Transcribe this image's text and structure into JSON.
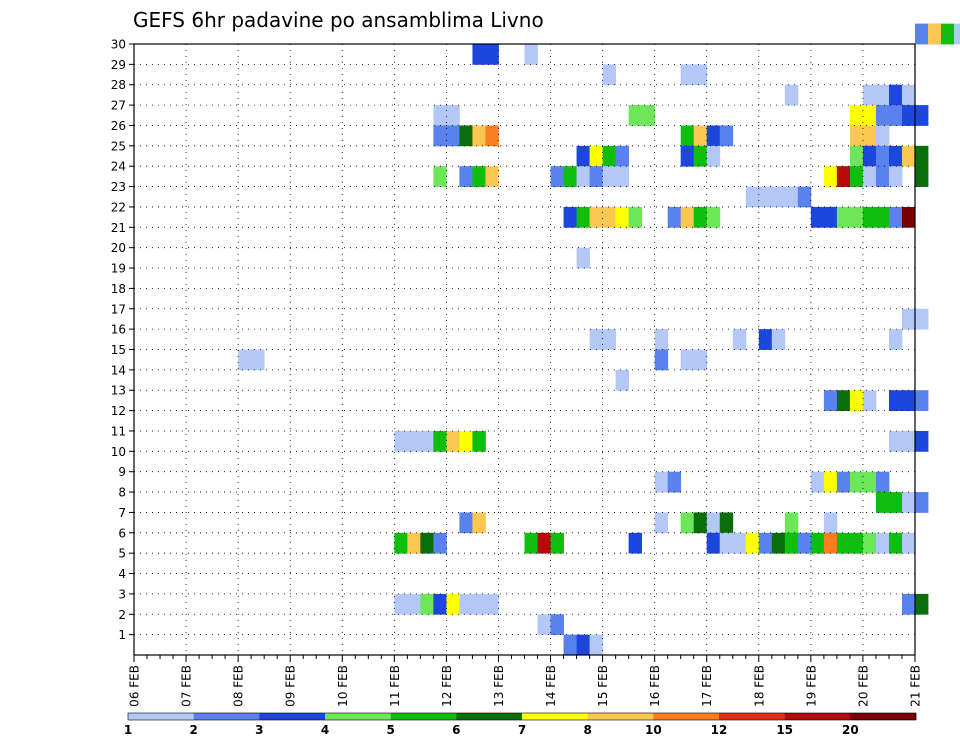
{
  "chart_data": {
    "type": "heatmap",
    "title": "GEFS 6hr padavine po ansamblima Livno",
    "x_tick_labels": [
      "06 FEB",
      "07 FEB",
      "08 FEB",
      "09 FEB",
      "10 FEB",
      "11 FEB",
      "12 FEB",
      "13 FEB",
      "14 FEB",
      "15 FEB",
      "16 FEB",
      "17 FEB",
      "18 FEB",
      "19 FEB",
      "20 FEB",
      "21 FEB"
    ],
    "y_tick_labels": [
      "1",
      "2",
      "3",
      "4",
      "5",
      "6",
      "7",
      "8",
      "9",
      "10",
      "11",
      "12",
      "13",
      "14",
      "15",
      "16",
      "17",
      "18",
      "19",
      "20",
      "21",
      "22",
      "23",
      "24",
      "25",
      "26",
      "27",
      "28",
      "29",
      "30"
    ],
    "colorbar_labels": [
      "1",
      "2",
      "3",
      "4",
      "5",
      "6",
      "7",
      "8",
      "10",
      "12",
      "15",
      "20"
    ],
    "colors": [
      "#b4c8f8",
      "#5a82ef",
      "#1c46dc",
      "#6ee65a",
      "#0fbe0f",
      "#0a6e0a",
      "#ffff00",
      "#fac850",
      "#fa7d1e",
      "#e62d14",
      "#b40a0a",
      "#780000"
    ],
    "grid": true,
    "cells": [
      {
        "m": 30,
        "c": [
          [
            60,
            2,
            2
          ],
          [
            61,
            1,
            8
          ],
          [
            62,
            1,
            5
          ],
          [
            63,
            1,
            1
          ]
        ]
      },
      {
        "m": 29,
        "c": [
          [
            26,
            2,
            3
          ],
          [
            30,
            1,
            1
          ]
        ]
      },
      {
        "m": 28,
        "c": [
          [
            36,
            1,
            1
          ],
          [
            42,
            2,
            1
          ]
        ]
      },
      {
        "m": 27,
        "c": [
          [
            50,
            1,
            1
          ],
          [
            56,
            2,
            1
          ],
          [
            58,
            1,
            3
          ],
          [
            59,
            1,
            1
          ]
        ]
      },
      {
        "m": 26,
        "c": [
          [
            23,
            2,
            1
          ],
          [
            38,
            2,
            4
          ],
          [
            55,
            2,
            7
          ],
          [
            57,
            2,
            2
          ],
          [
            59,
            2,
            3
          ]
        ]
      },
      {
        "m": 25,
        "c": [
          [
            23,
            2,
            2
          ],
          [
            25,
            1,
            6
          ],
          [
            26,
            1,
            8
          ],
          [
            27,
            1,
            9
          ],
          [
            42,
            1,
            5
          ],
          [
            43,
            1,
            8
          ],
          [
            44,
            1,
            3
          ],
          [
            45,
            1,
            2
          ],
          [
            55,
            2,
            8
          ],
          [
            57,
            1,
            1
          ]
        ]
      },
      {
        "m": 24,
        "c": [
          [
            34,
            1,
            3
          ],
          [
            35,
            1,
            7
          ],
          [
            36,
            1,
            5
          ],
          [
            37,
            1,
            2
          ],
          [
            42,
            1,
            3
          ],
          [
            43,
            1,
            5
          ],
          [
            44,
            1,
            1
          ],
          [
            55,
            1,
            4
          ],
          [
            56,
            1,
            3
          ],
          [
            57,
            1,
            2
          ],
          [
            58,
            1,
            3
          ],
          [
            59,
            1,
            8
          ],
          [
            60,
            1,
            6
          ]
        ]
      },
      {
        "m": 23,
        "c": [
          [
            23,
            1,
            4
          ],
          [
            25,
            1,
            2
          ],
          [
            26,
            1,
            5
          ],
          [
            27,
            1,
            8
          ],
          [
            32,
            1,
            2
          ],
          [
            33,
            1,
            5
          ],
          [
            34,
            1,
            1
          ],
          [
            35,
            1,
            2
          ],
          [
            36,
            2,
            1
          ],
          [
            53,
            1,
            7
          ],
          [
            54,
            1,
            11
          ],
          [
            55,
            1,
            5
          ],
          [
            56,
            1,
            1
          ],
          [
            57,
            1,
            2
          ],
          [
            58,
            1,
            1
          ],
          [
            60,
            1,
            6
          ]
        ]
      },
      {
        "m": 22,
        "c": [
          [
            47,
            4,
            1
          ],
          [
            51,
            1,
            2
          ]
        ]
      },
      {
        "m": 21,
        "c": [
          [
            33,
            1,
            3
          ],
          [
            34,
            1,
            5
          ],
          [
            35,
            2,
            8
          ],
          [
            37,
            1,
            7
          ],
          [
            38,
            1,
            4
          ],
          [
            41,
            1,
            2
          ],
          [
            42,
            1,
            8
          ],
          [
            43,
            1,
            5
          ],
          [
            44,
            1,
            4
          ],
          [
            52,
            2,
            3
          ],
          [
            54,
            2,
            4
          ],
          [
            56,
            2,
            5
          ],
          [
            58,
            1,
            2
          ],
          [
            59,
            1,
            12
          ]
        ]
      },
      {
        "m": 19,
        "c": [
          [
            34,
            1,
            1
          ]
        ]
      },
      {
        "m": 16,
        "c": [
          [
            59,
            2,
            1
          ]
        ]
      },
      {
        "m": 15,
        "c": [
          [
            35,
            2,
            1
          ],
          [
            40,
            1,
            1
          ],
          [
            46,
            1,
            1
          ],
          [
            48,
            1,
            3
          ],
          [
            49,
            1,
            1
          ],
          [
            58,
            1,
            1
          ]
        ]
      },
      {
        "m": 14,
        "c": [
          [
            8,
            2,
            1
          ],
          [
            40,
            1,
            2
          ],
          [
            42,
            2,
            1
          ]
        ]
      },
      {
        "m": 13,
        "c": [
          [
            37,
            1,
            1
          ]
        ]
      },
      {
        "m": 12,
        "c": [
          [
            53,
            1,
            2
          ],
          [
            54,
            1,
            6
          ],
          [
            55,
            1,
            7
          ],
          [
            56,
            1,
            1
          ],
          [
            58,
            2,
            3
          ],
          [
            60,
            1,
            2
          ]
        ]
      },
      {
        "m": 10,
        "c": [
          [
            20,
            3,
            1
          ],
          [
            23,
            1,
            5
          ],
          [
            24,
            1,
            8
          ],
          [
            25,
            1,
            7
          ],
          [
            26,
            1,
            5
          ],
          [
            58,
            2,
            1
          ],
          [
            60,
            1,
            3
          ]
        ]
      },
      {
        "m": 8,
        "c": [
          [
            40,
            1,
            1
          ],
          [
            41,
            1,
            2
          ],
          [
            52,
            1,
            1
          ],
          [
            53,
            1,
            7
          ],
          [
            54,
            1,
            2
          ],
          [
            55,
            2,
            4
          ],
          [
            57,
            1,
            2
          ]
        ]
      },
      {
        "m": 7,
        "c": [
          [
            57,
            2,
            5
          ],
          [
            59,
            1,
            1
          ],
          [
            60,
            1,
            2
          ]
        ]
      },
      {
        "m": 6,
        "c": [
          [
            25,
            1,
            2
          ],
          [
            26,
            1,
            8
          ],
          [
            40,
            1,
            1
          ],
          [
            42,
            1,
            4
          ],
          [
            43,
            1,
            6
          ],
          [
            44,
            1,
            1
          ],
          [
            45,
            1,
            6
          ],
          [
            50,
            1,
            4
          ],
          [
            53,
            1,
            1
          ]
        ]
      },
      {
        "m": 5,
        "c": [
          [
            20,
            1,
            5
          ],
          [
            21,
            1,
            8
          ],
          [
            22,
            1,
            6
          ],
          [
            23,
            1,
            2
          ],
          [
            30,
            1,
            5
          ],
          [
            31,
            1,
            11
          ],
          [
            32,
            1,
            5
          ],
          [
            38,
            1,
            3
          ],
          [
            44,
            1,
            3
          ],
          [
            45,
            2,
            1
          ],
          [
            47,
            1,
            7
          ],
          [
            48,
            1,
            2
          ],
          [
            49,
            1,
            6
          ],
          [
            50,
            1,
            5
          ],
          [
            51,
            1,
            2
          ],
          [
            52,
            1,
            5
          ],
          [
            53,
            1,
            9
          ],
          [
            54,
            2,
            5
          ],
          [
            56,
            1,
            4
          ],
          [
            57,
            1,
            1
          ],
          [
            58,
            1,
            5
          ],
          [
            59,
            1,
            1
          ]
        ]
      },
      {
        "m": 2,
        "c": [
          [
            20,
            2,
            1
          ],
          [
            22,
            1,
            4
          ],
          [
            23,
            1,
            3
          ],
          [
            24,
            1,
            7
          ],
          [
            25,
            3,
            1
          ],
          [
            59,
            1,
            2
          ],
          [
            60,
            1,
            6
          ]
        ]
      },
      {
        "m": 1,
        "c": [
          [
            31,
            1,
            1
          ],
          [
            32,
            1,
            2
          ]
        ]
      },
      {
        "m": 0,
        "c": [
          [
            33,
            1,
            2
          ],
          [
            34,
            1,
            3
          ],
          [
            35,
            1,
            1
          ]
        ]
      }
    ]
  }
}
